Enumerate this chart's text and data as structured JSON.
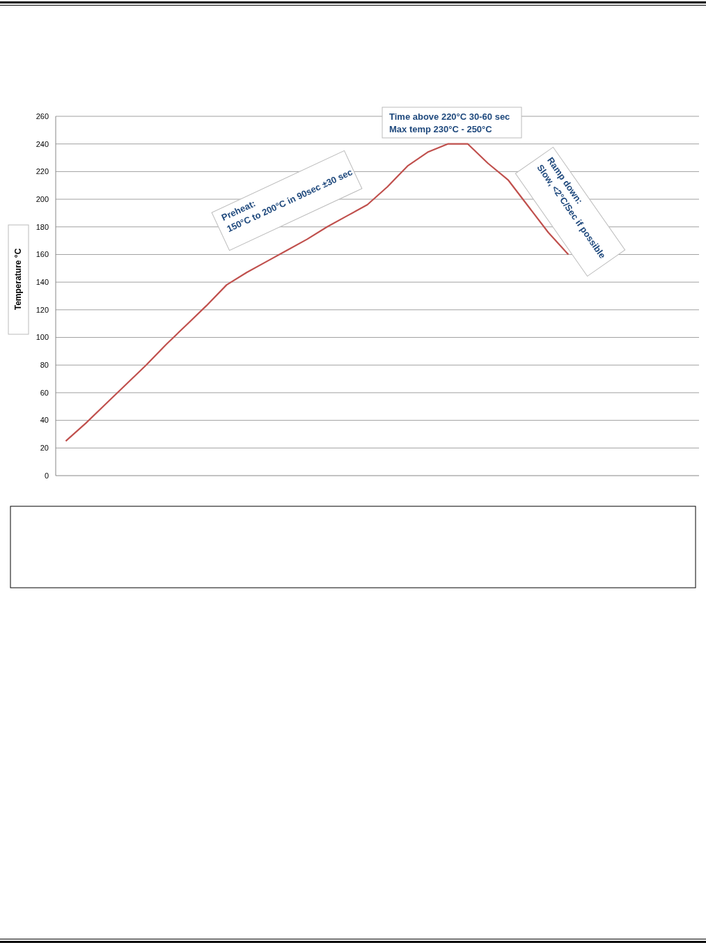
{
  "chart_data": {
    "type": "line",
    "ylabel": "Temperature °C",
    "categories": [
      null,
      null,
      null,
      null,
      null,
      null,
      null,
      null,
      null,
      null,
      null,
      null,
      null,
      null,
      null,
      null,
      null,
      null,
      null,
      null,
      null,
      null,
      null,
      null,
      null,
      null,
      null,
      null,
      null,
      null,
      null,
      null
    ],
    "series": [
      {
        "color": "#c0504d",
        "values": [
          25,
          38,
          52,
          66,
          80,
          95,
          109,
          123,
          138,
          147,
          155,
          163,
          171,
          180,
          188,
          196,
          209,
          224,
          234,
          240,
          240,
          226,
          214,
          195,
          176,
          160,
          null,
          null,
          null,
          null,
          null,
          null
        ]
      }
    ],
    "ylim": [
      0,
      260
    ],
    "yticks": [
      0,
      20,
      40,
      60,
      80,
      100,
      120,
      140,
      160,
      180,
      200,
      220,
      240,
      260
    ],
    "grid": "y",
    "marker": "none",
    "line_style": "solid",
    "annotations": [
      "Preheat:\n150°C to 200°C in 90sec ±30 sec",
      "Time above 220°C 30-60 sec\nMax temp 230°C -  250°C",
      "Ramp down:\nSlow, <2°C/Sec if possible"
    ]
  }
}
